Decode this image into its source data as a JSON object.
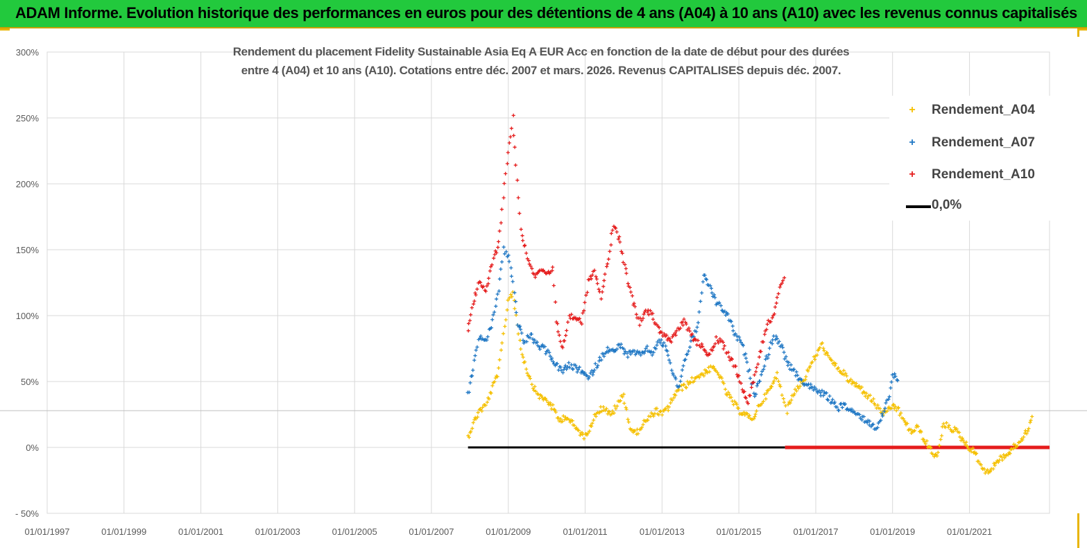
{
  "header": {
    "title": "ADAM Informe. Evolution historique des performances en euros pour des détentions de 4 ans (A04) à 10 ans (A10) avec les revenus connus capitalisés"
  },
  "colors": {
    "banner": "#22c93d",
    "a04": "#f5c000",
    "a07": "#1f77c4",
    "a10": "#e51c1c",
    "zero": "#000000",
    "zero_extension": "#e51c1c"
  },
  "chart_data": {
    "type": "scatter",
    "title_line1": "Rendement du placement Fidelity Sustainable Asia Eq A EUR Acc en fonction de la date de début pour des durées",
    "title_line2": "entre 4 (A04) et 10 ans (A10). Cotations entre déc. 2007 et mars. 2026. Revenus CAPITALISES depuis déc. 2007.",
    "x_type": "date",
    "x_ticks": [
      "01/01/1997",
      "01/01/1999",
      "01/01/2001",
      "01/01/2003",
      "01/01/2005",
      "01/01/2007",
      "01/01/2009",
      "01/01/2011",
      "01/01/2013",
      "01/01/2015",
      "01/01/2017",
      "01/01/2019",
      "01/01/2021"
    ],
    "xlim": [
      "1997-01-01",
      "2023-02-01"
    ],
    "y_ticks": [
      "- 50%",
      "0%",
      "50%",
      "100%",
      "150%",
      "200%",
      "250%",
      "300%"
    ],
    "ylim": [
      -50,
      300
    ],
    "y_unit": "%",
    "grid": "both",
    "legend_position": "top-right",
    "series": [
      {
        "name": "Rendement_A04",
        "color": "#f5c000",
        "marker": "+",
        "points": [
          [
            "2007-12-15",
            8
          ],
          [
            "2008-02-01",
            18
          ],
          [
            "2008-04-01",
            28
          ],
          [
            "2008-06-01",
            32
          ],
          [
            "2008-08-01",
            45
          ],
          [
            "2008-10-01",
            58
          ],
          [
            "2008-11-15",
            85
          ],
          [
            "2009-01-01",
            112
          ],
          [
            "2009-02-15",
            118
          ],
          [
            "2009-03-15",
            100
          ],
          [
            "2009-05-01",
            75
          ],
          [
            "2009-07-01",
            58
          ],
          [
            "2009-09-01",
            45
          ],
          [
            "2009-11-01",
            38
          ],
          [
            "2010-01-01",
            36
          ],
          [
            "2010-03-01",
            30
          ],
          [
            "2010-05-01",
            20
          ],
          [
            "2010-07-01",
            24
          ],
          [
            "2010-09-01",
            18
          ],
          [
            "2010-11-01",
            12
          ],
          [
            "2011-01-01",
            8
          ],
          [
            "2011-03-01",
            18
          ],
          [
            "2011-05-01",
            28
          ],
          [
            "2011-07-01",
            30
          ],
          [
            "2011-09-01",
            24
          ],
          [
            "2011-11-01",
            32
          ],
          [
            "2012-01-01",
            40
          ],
          [
            "2012-03-01",
            15
          ],
          [
            "2012-05-01",
            10
          ],
          [
            "2012-07-01",
            18
          ],
          [
            "2012-09-01",
            22
          ],
          [
            "2012-11-01",
            28
          ],
          [
            "2013-01-01",
            25
          ],
          [
            "2013-03-01",
            30
          ],
          [
            "2013-05-01",
            40
          ],
          [
            "2013-07-01",
            45
          ],
          [
            "2013-09-01",
            48
          ],
          [
            "2013-11-01",
            52
          ],
          [
            "2014-01-01",
            55
          ],
          [
            "2014-03-01",
            58
          ],
          [
            "2014-05-01",
            60
          ],
          [
            "2014-07-01",
            55
          ],
          [
            "2014-09-01",
            42
          ],
          [
            "2014-11-01",
            35
          ],
          [
            "2015-01-01",
            28
          ],
          [
            "2015-03-01",
            26
          ],
          [
            "2015-05-01",
            20
          ],
          [
            "2015-07-01",
            30
          ],
          [
            "2015-09-01",
            38
          ],
          [
            "2015-11-01",
            45
          ],
          [
            "2016-01-01",
            55
          ],
          [
            "2016-02-15",
            42
          ],
          [
            "2016-04-01",
            28
          ],
          [
            "2016-05-01",
            35
          ],
          [
            "2016-07-01",
            45
          ],
          [
            "2016-09-01",
            50
          ],
          [
            "2016-11-01",
            60
          ],
          [
            "2017-01-01",
            70
          ],
          [
            "2017-03-01",
            78
          ],
          [
            "2017-05-01",
            68
          ],
          [
            "2017-07-01",
            62
          ],
          [
            "2017-09-01",
            58
          ],
          [
            "2017-11-01",
            52
          ],
          [
            "2018-01-01",
            48
          ],
          [
            "2018-03-01",
            45
          ],
          [
            "2018-05-01",
            40
          ],
          [
            "2018-07-01",
            35
          ],
          [
            "2018-09-01",
            28
          ],
          [
            "2018-11-01",
            25
          ],
          [
            "2019-01-01",
            32
          ],
          [
            "2019-03-01",
            28
          ],
          [
            "2019-05-01",
            18
          ],
          [
            "2019-07-01",
            12
          ],
          [
            "2019-09-01",
            15
          ],
          [
            "2019-11-01",
            5
          ],
          [
            "2020-01-01",
            -2
          ],
          [
            "2020-03-01",
            -8
          ],
          [
            "2020-05-01",
            18
          ],
          [
            "2020-07-01",
            15
          ],
          [
            "2020-09-01",
            12
          ],
          [
            "2020-11-01",
            5
          ],
          [
            "2021-01-01",
            0
          ],
          [
            "2021-03-01",
            -5
          ],
          [
            "2021-05-01",
            -15
          ],
          [
            "2021-07-01",
            -20
          ],
          [
            "2021-09-01",
            -12
          ],
          [
            "2021-11-01",
            -8
          ],
          [
            "2022-01-01",
            -5
          ],
          [
            "2022-03-01",
            0
          ],
          [
            "2022-05-01",
            5
          ],
          [
            "2022-07-01",
            12
          ],
          [
            "2022-09-01",
            25
          ]
        ]
      },
      {
        "name": "Rendement_A07",
        "color": "#1f77c4",
        "marker": "+",
        "points": [
          [
            "2007-12-15",
            40
          ],
          [
            "2008-02-01",
            60
          ],
          [
            "2008-04-01",
            85
          ],
          [
            "2008-06-01",
            80
          ],
          [
            "2008-08-01",
            95
          ],
          [
            "2008-10-01",
            120
          ],
          [
            "2008-11-15",
            150
          ],
          [
            "2009-01-01",
            145
          ],
          [
            "2009-02-15",
            125
          ],
          [
            "2009-04-01",
            95
          ],
          [
            "2009-06-01",
            80
          ],
          [
            "2009-08-01",
            85
          ],
          [
            "2009-10-01",
            78
          ],
          [
            "2009-12-01",
            75
          ],
          [
            "2010-02-01",
            70
          ],
          [
            "2010-04-01",
            62
          ],
          [
            "2010-06-01",
            58
          ],
          [
            "2010-08-01",
            62
          ],
          [
            "2010-10-01",
            60
          ],
          [
            "2010-12-01",
            58
          ],
          [
            "2011-02-01",
            52
          ],
          [
            "2011-04-01",
            60
          ],
          [
            "2011-06-01",
            68
          ],
          [
            "2011-08-01",
            75
          ],
          [
            "2011-10-01",
            72
          ],
          [
            "2011-12-01",
            78
          ],
          [
            "2012-02-01",
            70
          ],
          [
            "2012-04-01",
            72
          ],
          [
            "2012-06-01",
            70
          ],
          [
            "2012-08-01",
            75
          ],
          [
            "2012-10-01",
            72
          ],
          [
            "2012-12-01",
            80
          ],
          [
            "2013-02-01",
            78
          ],
          [
            "2013-04-01",
            60
          ],
          [
            "2013-06-01",
            45
          ],
          [
            "2013-08-01",
            65
          ],
          [
            "2013-10-01",
            80
          ],
          [
            "2013-12-01",
            90
          ],
          [
            "2014-02-01",
            130
          ],
          [
            "2014-04-01",
            122
          ],
          [
            "2014-06-01",
            110
          ],
          [
            "2014-08-01",
            105
          ],
          [
            "2014-10-01",
            98
          ],
          [
            "2014-12-01",
            85
          ],
          [
            "2015-02-01",
            78
          ],
          [
            "2015-04-01",
            60
          ],
          [
            "2015-06-01",
            40
          ],
          [
            "2015-08-01",
            55
          ],
          [
            "2015-10-01",
            70
          ],
          [
            "2015-12-01",
            85
          ],
          [
            "2016-02-01",
            78
          ],
          [
            "2016-04-01",
            65
          ],
          [
            "2016-06-01",
            58
          ],
          [
            "2016-08-01",
            52
          ],
          [
            "2016-10-01",
            48
          ],
          [
            "2016-12-01",
            45
          ],
          [
            "2017-02-01",
            42
          ],
          [
            "2017-04-01",
            40
          ],
          [
            "2017-06-01",
            35
          ],
          [
            "2017-08-01",
            30
          ],
          [
            "2017-10-01",
            32
          ],
          [
            "2017-12-01",
            28
          ],
          [
            "2018-02-01",
            25
          ],
          [
            "2018-04-01",
            22
          ],
          [
            "2018-06-01",
            18
          ],
          [
            "2018-08-01",
            15
          ],
          [
            "2018-10-01",
            25
          ],
          [
            "2018-12-01",
            40
          ],
          [
            "2019-01-01",
            55
          ],
          [
            "2019-03-01",
            52
          ]
        ]
      },
      {
        "name": "Rendement_A10",
        "color": "#e51c1c",
        "marker": "+",
        "points": [
          [
            "2007-12-15",
            90
          ],
          [
            "2008-02-01",
            110
          ],
          [
            "2008-04-01",
            125
          ],
          [
            "2008-06-01",
            118
          ],
          [
            "2008-08-01",
            140
          ],
          [
            "2008-10-01",
            155
          ],
          [
            "2008-11-15",
            190
          ],
          [
            "2009-01-01",
            225
          ],
          [
            "2009-02-15",
            250
          ],
          [
            "2009-03-15",
            215
          ],
          [
            "2009-05-01",
            165
          ],
          [
            "2009-07-01",
            145
          ],
          [
            "2009-09-01",
            130
          ],
          [
            "2009-11-01",
            135
          ],
          [
            "2010-01-01",
            130
          ],
          [
            "2010-03-01",
            135
          ],
          [
            "2010-04-01",
            95
          ],
          [
            "2010-06-01",
            75
          ],
          [
            "2010-08-01",
            98
          ],
          [
            "2010-10-01",
            100
          ],
          [
            "2010-12-01",
            95
          ],
          [
            "2011-02-01",
            125
          ],
          [
            "2011-04-01",
            135
          ],
          [
            "2011-06-01",
            115
          ],
          [
            "2011-08-01",
            140
          ],
          [
            "2011-10-01",
            170
          ],
          [
            "2011-12-01",
            155
          ],
          [
            "2012-02-01",
            130
          ],
          [
            "2012-04-01",
            110
          ],
          [
            "2012-06-01",
            95
          ],
          [
            "2012-08-01",
            105
          ],
          [
            "2012-10-01",
            100
          ],
          [
            "2012-12-01",
            90
          ],
          [
            "2013-02-01",
            85
          ],
          [
            "2013-04-01",
            80
          ],
          [
            "2013-06-01",
            90
          ],
          [
            "2013-08-01",
            95
          ],
          [
            "2013-10-01",
            85
          ],
          [
            "2013-12-01",
            80
          ],
          [
            "2014-02-01",
            75
          ],
          [
            "2014-04-01",
            70
          ],
          [
            "2014-06-01",
            82
          ],
          [
            "2014-08-01",
            78
          ],
          [
            "2014-10-01",
            70
          ],
          [
            "2014-12-01",
            60
          ],
          [
            "2015-02-01",
            45
          ],
          [
            "2015-04-01",
            35
          ],
          [
            "2015-06-01",
            55
          ],
          [
            "2015-08-01",
            75
          ],
          [
            "2015-10-01",
            95
          ],
          [
            "2015-12-01",
            100
          ],
          [
            "2016-02-01",
            125
          ],
          [
            "2016-03-15",
            130
          ]
        ]
      }
    ],
    "reference_line": {
      "name": "0,0%",
      "y": 0,
      "x_start": "2007-12-15",
      "x_end": "2023-02-01",
      "color_until": "2016-03-15"
    }
  }
}
